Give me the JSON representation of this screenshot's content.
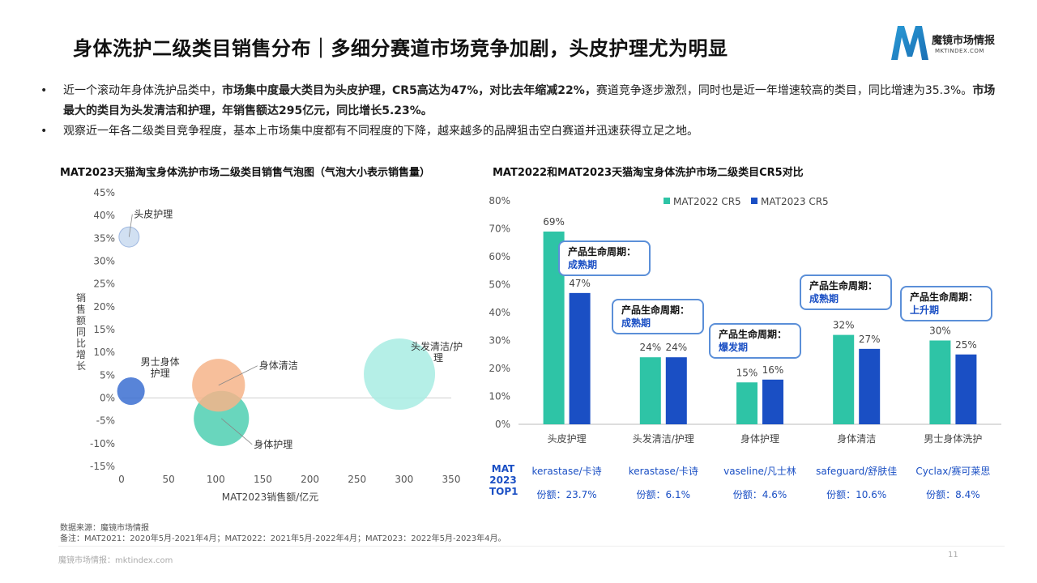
{
  "header": {
    "title": "身体洗护二级类目销售分布｜多细分赛道市场竞争加剧，头皮护理尤为明显",
    "logo_text": "魔镜市场情报",
    "logo_sub": "MKTINDEX.COM"
  },
  "bullets": [
    {
      "dot": "•",
      "parts": [
        {
          "text": "近一个滚动年身体洗护品类中，",
          "bold": false
        },
        {
          "text": "市场集中度最大类目为头皮护理，CR5高达为47%，对比去年缩减22%，",
          "bold": true
        },
        {
          "text": "赛道竞争逐步激烈，同时也是近一年增速较高的类目，同比增速为35.3%。",
          "bold": false
        },
        {
          "text": "市场最大的类目为头发清洁和护理，年销售额达295亿元，同比增长5.23%。",
          "bold": true
        }
      ]
    },
    {
      "dot": "•",
      "parts": [
        {
          "text": "观察近一年各二级类目竞争程度，基本上市场集中度都有不同程度的下降，越来越多的品牌狙击空白赛道并迅速获得立足之地。",
          "bold": false
        }
      ]
    }
  ],
  "bubble_chart_title": "MAT2023天猫淘宝身体洗护市场二级类目销售气泡图（气泡大小表示销售量）",
  "bar_chart_title": "MAT2022和MAT2023天猫淘宝身体洗护市场二级类目CR5对比",
  "chart_data": [
    {
      "type": "scatter",
      "title": "MAT2023天猫淘宝身体洗护市场二级类目销售气泡图（气泡大小表示销售量）",
      "xlabel": "MAT2023销售额/亿元",
      "ylabel": "销售额同比增长",
      "xlim": [
        0,
        350
      ],
      "ylim": [
        -15,
        45
      ],
      "x_ticks": [
        "0",
        "50",
        "100",
        "150",
        "200",
        "250",
        "300",
        "350"
      ],
      "y_ticks": [
        "-15%",
        "-10%",
        "-5%",
        "0%",
        "5%",
        "10%",
        "15%",
        "20%",
        "25%",
        "30%",
        "35%",
        "40%",
        "45%"
      ],
      "points": [
        {
          "name": "头皮护理",
          "label_lines": [
            "头皮护理"
          ],
          "x": 8,
          "y": 35.3,
          "size": 0.08,
          "color": "#c9daf0"
        },
        {
          "name": "男士身体护理",
          "label_lines": [
            "男士身体",
            "护理"
          ],
          "x": 10,
          "y": 1.5,
          "size": 0.15,
          "color": "#3b6fd1"
        },
        {
          "name": "身体清洁",
          "label_lines": [
            "身体清洁"
          ],
          "x": 103,
          "y": 2.8,
          "size": 0.55,
          "color": "#f6b48a"
        },
        {
          "name": "身体护理",
          "label_lines": [
            "身体护理"
          ],
          "x": 106,
          "y": -4.5,
          "size": 0.6,
          "color": "#4fcfb1"
        },
        {
          "name": "头发清洁/护理",
          "label_lines": [
            "头发清洁/护",
            "理"
          ],
          "x": 295,
          "y": 5.23,
          "size": 1.0,
          "color": "#a8ece3"
        }
      ]
    },
    {
      "type": "bar",
      "title": "MAT2022和MAT2023天猫淘宝身体洗护市场二级类目CR5对比",
      "categories": [
        "头皮护理",
        "头发清洁/护理",
        "身体护理",
        "身体清洁",
        "男士身体洗护"
      ],
      "ylim": [
        0,
        80
      ],
      "y_ticks": [
        "0%",
        "10%",
        "20%",
        "30%",
        "40%",
        "50%",
        "60%",
        "70%",
        "80%"
      ],
      "legend_position": "top",
      "series": [
        {
          "name": "MAT2022 CR5",
          "color": "#2ec4a6",
          "values": [
            69,
            24,
            15,
            32,
            30
          ],
          "labels": [
            "69%",
            "24%",
            "15%",
            "32%",
            "30%"
          ]
        },
        {
          "name": "MAT2023 CR5",
          "color": "#1a4fc4",
          "values": [
            47,
            24,
            16,
            27,
            25
          ],
          "labels": [
            "47%",
            "24%",
            "16%",
            "27%",
            "25%"
          ]
        }
      ],
      "lifecycle": [
        {
          "heading": "产品生命周期：",
          "stage": "成熟期"
        },
        {
          "heading": "产品生命周期：",
          "stage": "成熟期"
        },
        {
          "heading": "产品生命周期：",
          "stage": "爆发期"
        },
        {
          "heading": "产品生命周期：",
          "stage": "成熟期"
        },
        {
          "heading": "产品生命周期：",
          "stage": "上升期"
        }
      ]
    }
  ],
  "top1": {
    "label_lines": [
      "MAT",
      "2023",
      "TOP1"
    ],
    "brands": [
      "kerastase/卡诗",
      "kerastase/卡诗",
      "vaseline/凡士林",
      "safeguard/舒肤佳",
      "Cyclax/赛可莱思"
    ],
    "shares": [
      "份额：23.7%",
      "份额：6.1%",
      "份额：4.6%",
      "份额：10.6%",
      "份额：8.4%"
    ]
  },
  "footnotes": {
    "source": "数据来源：魔镜市场情报",
    "note": "备注：MAT2021：2020年5月-2021年4月；MAT2022：2021年5月-2022年4月；MAT2023：2022年5月-2023年4月。"
  },
  "footer": {
    "text": "魔镜市场情报：mktindex.com",
    "page": "11"
  },
  "colors": {
    "accent": "#1a4fc4",
    "teal": "#2ec4a6",
    "box_border": "#5b8fd8"
  }
}
